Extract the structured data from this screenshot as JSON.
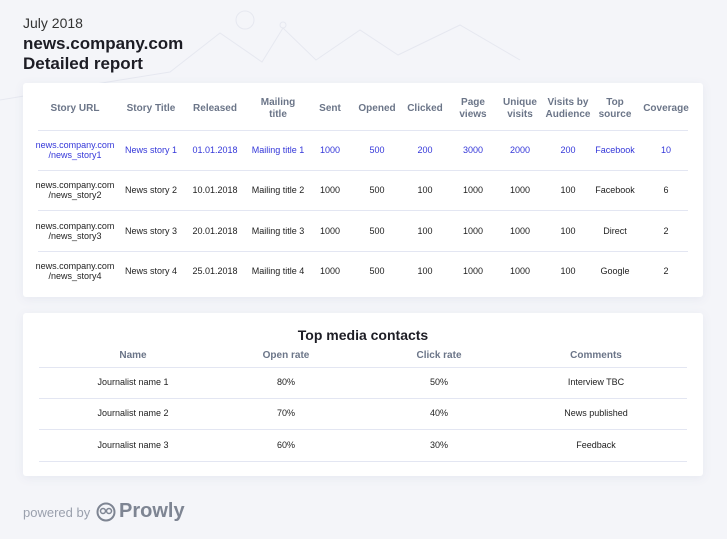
{
  "header": {
    "month": "July 2018",
    "site": "news.company.com",
    "subtitle": "Detailed report"
  },
  "stories": {
    "columns": [
      "Story URL",
      "Story Title",
      "Released",
      "Mailing title",
      "Sent",
      "Opened",
      "Clicked",
      "Page views",
      "Unique visits",
      "Visits by Audience",
      "Top source",
      "Coverage"
    ],
    "rows": [
      [
        "news.company.com /news_story1",
        "News story 1",
        "01.01.2018",
        "Mailing title 1",
        "1000",
        "500",
        "200",
        "3000",
        "2000",
        "200",
        "Facebook",
        "10"
      ],
      [
        "news.company.com /news_story2",
        "News story 2",
        "10.01.2018",
        "Mailing title 2",
        "1000",
        "500",
        "100",
        "1000",
        "1000",
        "100",
        "Facebook",
        "6"
      ],
      [
        "news.company.com /news_story3",
        "News story 3",
        "20.01.2018",
        "Mailing title 3",
        "1000",
        "500",
        "100",
        "1000",
        "1000",
        "100",
        "Direct",
        "2"
      ],
      [
        "news.company.com /news_story4",
        "News story 4",
        "25.01.2018",
        "Mailing title 4",
        "1000",
        "500",
        "100",
        "1000",
        "1000",
        "100",
        "Google",
        "2"
      ]
    ],
    "highlight_color": "#3437d9"
  },
  "contacts": {
    "title": "Top media contacts",
    "columns": [
      "Name",
      "Open rate",
      "Click rate",
      "Comments"
    ],
    "rows": [
      [
        "Journalist name 1",
        "80%",
        "50%",
        "Interview TBC"
      ],
      [
        "Journalist name 2",
        "70%",
        "40%",
        "News published"
      ],
      [
        "Journalist name 3",
        "60%",
        "30%",
        "Feedback"
      ]
    ]
  },
  "footer": {
    "powered_by": "powered by",
    "brand": "Prowly"
  }
}
